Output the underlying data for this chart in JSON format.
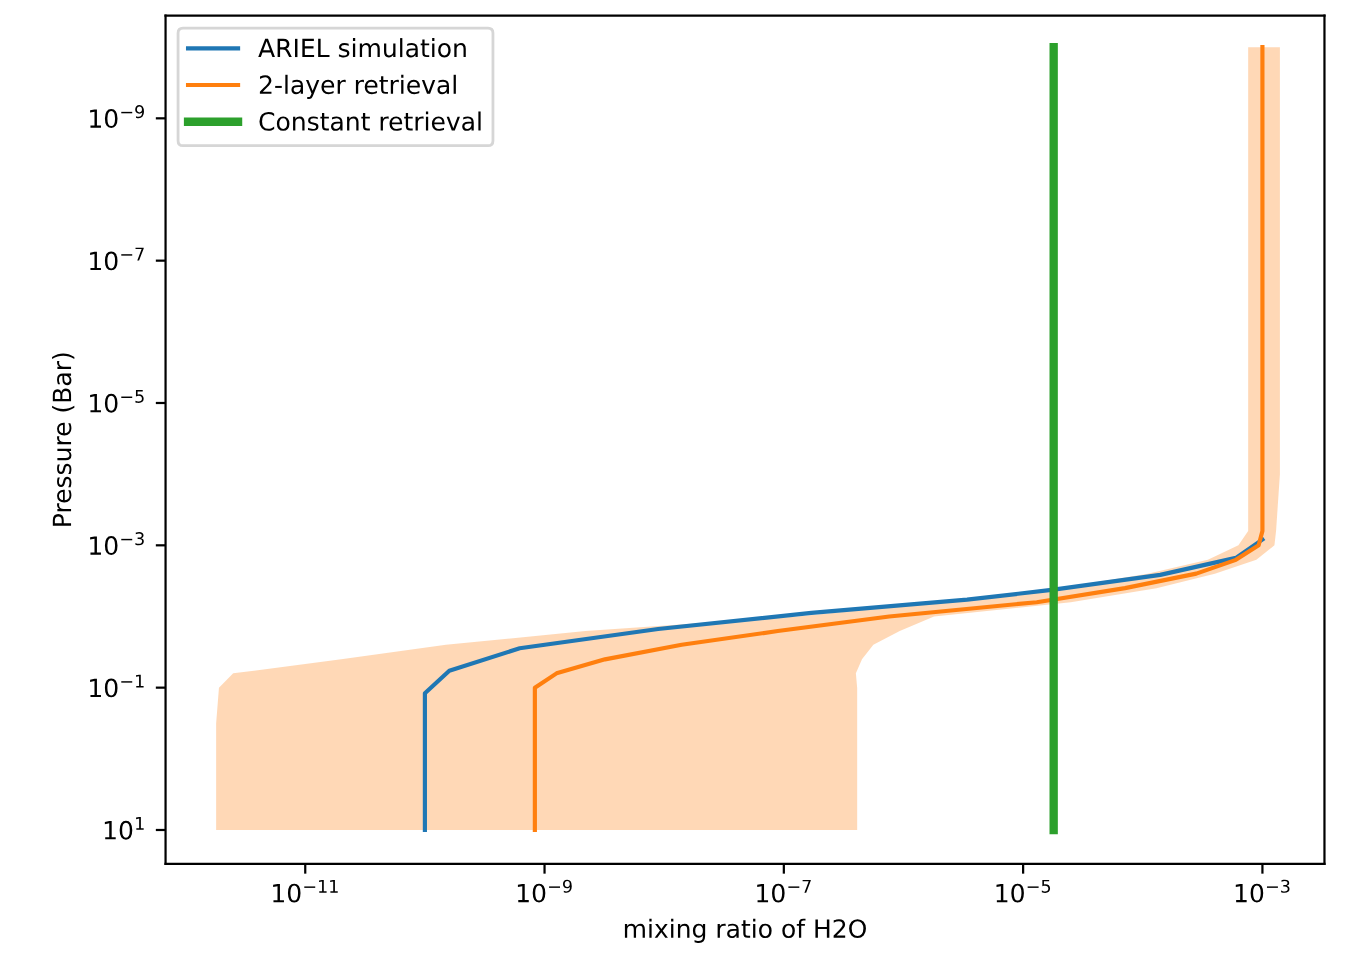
{
  "chart_data": {
    "type": "line",
    "orientation": "horizontal",
    "xlabel": "mixing ratio of H2O",
    "ylabel": "Pressure (Bar)",
    "log": "xy",
    "legend": "top left",
    "grid": false,
    "xlim": [
      6.8e-13,
      0.0033
    ],
    "ylim": [
      30,
      3.6e-11
    ],
    "xticks": [
      {
        "value": 1e-11,
        "label": "10$^{−11}$"
      },
      {
        "value": 1e-09,
        "label": "10$^{−9}$"
      },
      {
        "value": 1e-07,
        "label": "10$^{−7}$"
      },
      {
        "value": 1e-05,
        "label": "10$^{−5}$"
      },
      {
        "value": 0.001,
        "label": "10$^{−3}$"
      }
    ],
    "yticks": [
      {
        "value": 1e-09,
        "label": "10$^{−9}$"
      },
      {
        "value": 1e-07,
        "label": "10$^{−7}$"
      },
      {
        "value": 1e-05,
        "label": "10$^{−5}$"
      },
      {
        "value": 0.001,
        "label": "10$^{−3}$"
      },
      {
        "value": 0.1,
        "label": "10$^{−1}$"
      },
      {
        "value": 10,
        "label": "10$^{1}$"
      }
    ],
    "series": [
      {
        "name": "ARIEL simulation",
        "color": "#1f77b4",
        "x": [
          10,
          0.12,
          0.058,
          0.028,
          0.015,
          0.0089,
          0.0058,
          0.0042,
          0.0026,
          0.0015,
          0.00083
        ],
        "values": [
          1e-10,
          1e-10,
          1.6e-10,
          6.2e-10,
          8.9e-09,
          1.7e-07,
          3.4e-06,
          1.8e-05,
          0.00014,
          0.0006,
          0.001
        ]
      },
      {
        "name": "2-layer retrieval",
        "color": "#ff7f0e",
        "x": [
          10,
          0.316,
          0.1,
          0.063,
          0.04,
          0.025,
          0.016,
          0.01,
          0.0063,
          0.004,
          0.0025,
          0.0016,
          0.001,
          0.00063,
          0.0001,
          1e-06,
          1e-08,
          1e-10
        ],
        "values": [
          8.3e-10,
          8.3e-10,
          8.3e-10,
          1.26e-09,
          3.2e-09,
          1.4e-08,
          8.9e-08,
          7.6e-07,
          1.3e-05,
          7.1e-05,
          0.00028,
          0.0006,
          0.00093,
          0.001,
          0.001,
          0.001,
          0.001,
          0.001
        ],
        "lower": [
          1.8e-12,
          1.8e-12,
          1.9e-12,
          2.5e-12,
          2e-11,
          1.5e-10,
          2.2e-09,
          1.3e-07,
          2e-06,
          2e-05,
          0.00011,
          0.00035,
          0.00063,
          0.00076,
          0.00076,
          0.00076,
          0.00076,
          0.00076
        ],
        "upper": [
          4.1e-07,
          4.1e-07,
          4.1e-07,
          4e-07,
          4.5e-07,
          5.6e-07,
          9.3e-07,
          1.8e-06,
          2.5e-05,
          0.00013,
          0.0004,
          0.00089,
          0.00126,
          0.0013,
          0.0014,
          0.0014,
          0.0014,
          0.0014
        ]
      },
      {
        "name": "Constant retrieval",
        "color": "#2ca02c",
        "x": [
          10,
          1e-10
        ],
        "values": [
          1.8e-05,
          1.8e-05
        ]
      }
    ]
  }
}
